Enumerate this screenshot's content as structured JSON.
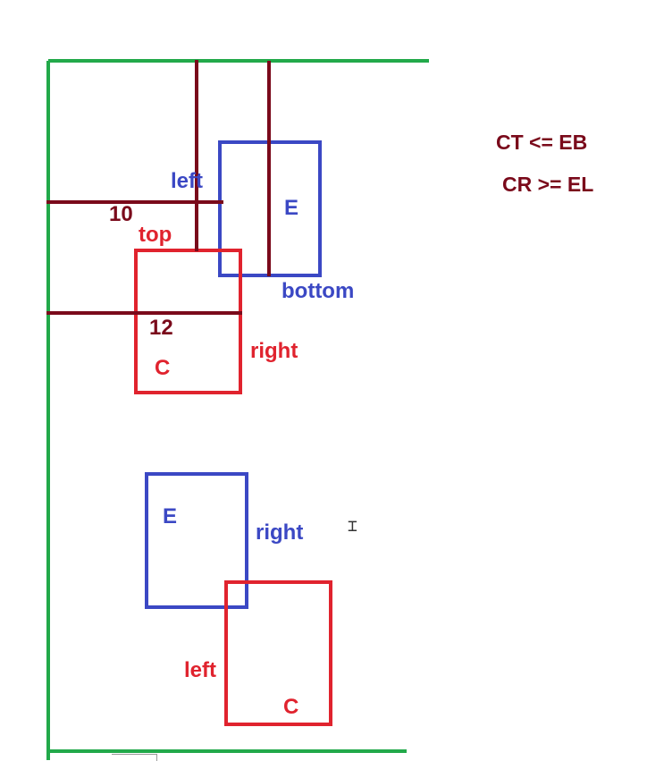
{
  "colors": {
    "frame": "#22a94a",
    "element": "#3b48c4",
    "container": "#e0232e",
    "measure": "#7a0a1b",
    "formula": "#7a0a1b"
  },
  "top_diagram": {
    "label_left": "left",
    "label_top": "top",
    "label_bottom": "bottom",
    "label_right": "right",
    "element_letter": "E",
    "container_letter": "C",
    "measure_top": "10",
    "measure_bottom": "12"
  },
  "bottom_diagram": {
    "label_right": "right",
    "label_left": "left",
    "element_letter": "E",
    "container_letter": "C"
  },
  "formulas": {
    "line1": "CT <= EB",
    "line2": "CR >= EL"
  },
  "cursor_icon": "text-cursor-icon"
}
